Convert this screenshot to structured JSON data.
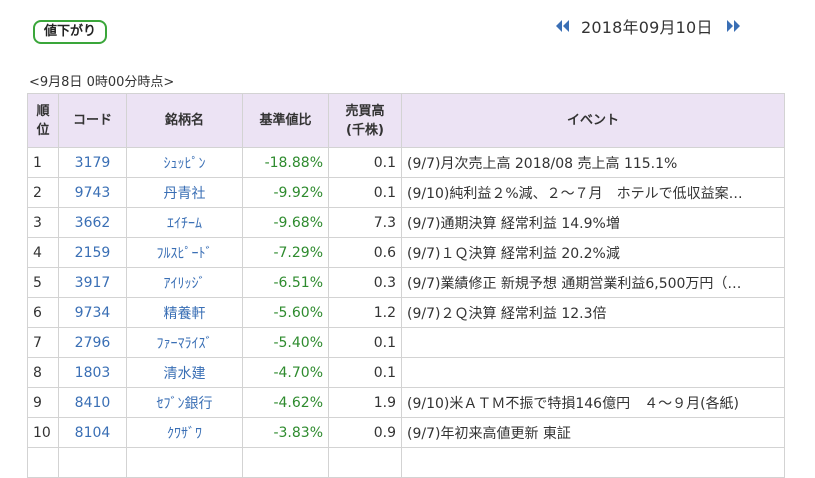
{
  "header": {
    "badge": "値下がり",
    "date": "2018年09月10日",
    "prev_icon": "double-left-arrow-icon",
    "next_icon": "double-right-arrow-icon",
    "accent": "#3a6fb5",
    "badge_border": "#3aa63a"
  },
  "as_of": "<9月8日 0時00分時点>",
  "table": {
    "header_bg": "#ece3f4",
    "columns": {
      "rank": [
        "順",
        "位"
      ],
      "code": "コード",
      "name": "銘柄名",
      "pct": "基準値比",
      "volume": [
        "売買高",
        "(千株)"
      ],
      "event": "イベント"
    },
    "rows": [
      {
        "rank": "1",
        "code": "3179",
        "name": "ｼｭｯﾋﾟﾝ",
        "pct": "-18.88%",
        "volume": "0.1",
        "event": "(9/7)月次売上高 2018/08 売上高 115.1%"
      },
      {
        "rank": "2",
        "code": "9743",
        "name": "丹青社",
        "pct": "-9.92%",
        "volume": "0.1",
        "event": "(9/10)純利益２%減、２～７月　ホテルで低収益案…"
      },
      {
        "rank": "3",
        "code": "3662",
        "name": "ｴｲﾁｰﾑ",
        "pct": "-9.68%",
        "volume": "7.3",
        "event": "(9/7)通期決算 経常利益 14.9%増"
      },
      {
        "rank": "4",
        "code": "2159",
        "name": "ﾌﾙｽﾋﾟｰﾄﾞ",
        "pct": "-7.29%",
        "volume": "0.6",
        "event": "(9/7)１Ｑ決算 経常利益 20.2%減"
      },
      {
        "rank": "5",
        "code": "3917",
        "name": "ｱｲﾘｯｼﾞ",
        "pct": "-6.51%",
        "volume": "0.3",
        "event": "(9/7)業績修正 新規予想 通期営業利益6,500万円（…"
      },
      {
        "rank": "6",
        "code": "9734",
        "name": "精養軒",
        "pct": "-5.60%",
        "volume": "1.2",
        "event": "(9/7)２Ｑ決算 経常利益 12.3倍"
      },
      {
        "rank": "7",
        "code": "2796",
        "name": "ﾌｧｰﾏﾗｲｽﾞ",
        "pct": "-5.40%",
        "volume": "0.1",
        "event": ""
      },
      {
        "rank": "8",
        "code": "1803",
        "name": "清水建",
        "pct": "-4.70%",
        "volume": "0.1",
        "event": ""
      },
      {
        "rank": "9",
        "code": "8410",
        "name": "ｾﾌﾞﾝ銀行",
        "pct": "-4.62%",
        "volume": "1.9",
        "event": "(9/10)米ＡＴＭ不振で特損146億円　４～９月(各紙)"
      },
      {
        "rank": "10",
        "code": "8104",
        "name": "ｸﾜｻﾞﾜ",
        "pct": "-3.83%",
        "volume": "0.9",
        "event": "(9/7)年初来高値更新 東証"
      },
      {
        "rank": "",
        "code": "",
        "name": "",
        "pct": "",
        "volume": "",
        "event": ""
      }
    ]
  }
}
